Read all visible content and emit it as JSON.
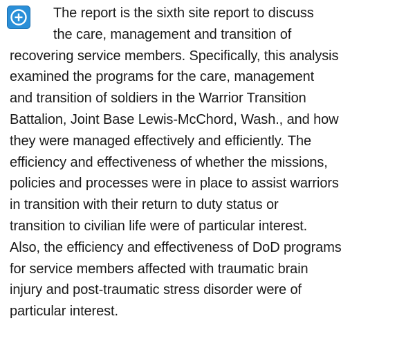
{
  "paragraph": {
    "lines": [
      "The report is the sixth site report to discuss",
      "the care, management and transition of",
      "recovering service members. Specifically, this analysis",
      "examined the programs for the care, management",
      "and transition of soldiers in the Warrior Transition",
      "Battalion, Joint Base Lewis-McChord, Wash., and how",
      "they were managed effectively and efficiently. The",
      "efficiency and effectiveness of whether the missions,",
      "policies and processes were in place to assist warriors",
      "in transition with their return to duty status or",
      "transition to civilian life were of particular interest.",
      "Also, the efficiency and effectiveness of DoD programs",
      "for service members affected with traumatic brain",
      "injury and post-traumatic stress disorder were of",
      "particular interest."
    ]
  }
}
